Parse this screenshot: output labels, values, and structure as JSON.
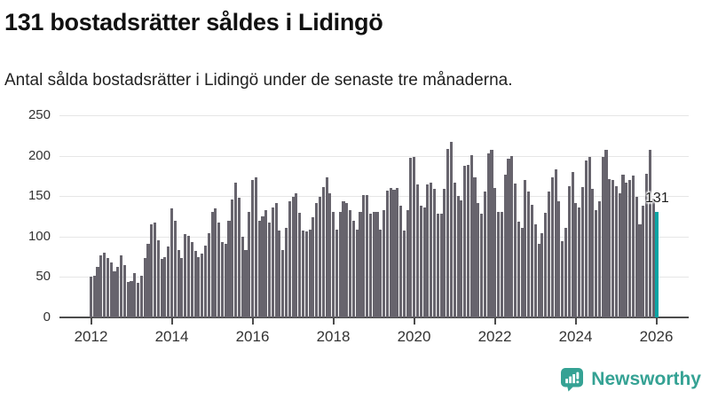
{
  "header": {
    "title": "131 bostadsrätter såldes i Lidingö",
    "subtitle": "Antal sålda bostadsrätter i Lidingö under de senaste tre månaderna."
  },
  "chart_data": {
    "type": "bar",
    "title": "131 bostadsrätter såldes i Lidingö",
    "subtitle": "Antal sålda bostadsrätter i Lidingö under de senaste tre månaderna.",
    "frequency": "monthly",
    "x_start": "2012-01",
    "x_end": "2026-01",
    "xlabel": "",
    "ylabel": "",
    "ylim": [
      0,
      250
    ],
    "y_ticks": [
      0,
      50,
      100,
      150,
      200,
      250
    ],
    "x_ticks": [
      2012,
      2014,
      2016,
      2018,
      2020,
      2022,
      2024,
      2026
    ],
    "grid": "horizontal",
    "legend": "none",
    "values": [
      50,
      52,
      63,
      77,
      80,
      74,
      68,
      57,
      63,
      77,
      65,
      44,
      45,
      55,
      43,
      52,
      74,
      91,
      115,
      117,
      95,
      72,
      75,
      88,
      135,
      120,
      83,
      74,
      103,
      101,
      93,
      82,
      75,
      79,
      89,
      104,
      131,
      135,
      117,
      93,
      91,
      120,
      146,
      167,
      148,
      100,
      83,
      130,
      170,
      173,
      119,
      125,
      133,
      117,
      136,
      141,
      107,
      83,
      111,
      144,
      149,
      153,
      129,
      108,
      106,
      109,
      124,
      141,
      149,
      161,
      173,
      153,
      130,
      109,
      130,
      144,
      141,
      133,
      119,
      109,
      130,
      151,
      151,
      128,
      131,
      130,
      109,
      133,
      157,
      160,
      158,
      160,
      138,
      107,
      133,
      197,
      199,
      165,
      138,
      136,
      165,
      167,
      159,
      128,
      128,
      159,
      208,
      217,
      167,
      150,
      145,
      187,
      189,
      201,
      173,
      141,
      128,
      156,
      203,
      207,
      160,
      130,
      130,
      176,
      196,
      200,
      166,
      118,
      111,
      170,
      156,
      139,
      115,
      91,
      104,
      129,
      156,
      173,
      183,
      144,
      94,
      111,
      162,
      180,
      141,
      136,
      161,
      194,
      199,
      159,
      133,
      144,
      198,
      207,
      171,
      170,
      162,
      154,
      177,
      167,
      170,
      175,
      149,
      115,
      138,
      178,
      207,
      147,
      131
    ],
    "annotation": {
      "label": "131",
      "index": 168
    },
    "colors": {
      "bar": "#67646d",
      "highlight": "#0aa5a5",
      "gridline": "#e6e6e6",
      "axis": "#4c4c4c",
      "tick_text": "#333333"
    }
  },
  "branding": {
    "name": "Newsworthy",
    "color": "#35a294",
    "icon": "bar-chart-speech-bubble-icon"
  }
}
